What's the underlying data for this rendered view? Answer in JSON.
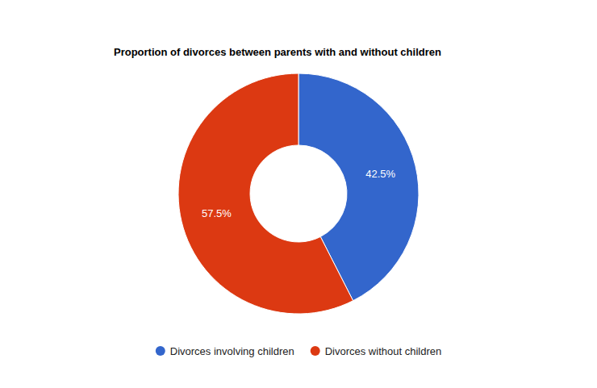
{
  "chart_data": {
    "type": "donut",
    "title": "Proportion of divorces between parents with and without children",
    "categories": [
      "Divorces involving children",
      "Divorces without children"
    ],
    "values": [
      42.5,
      57.5
    ],
    "value_labels": [
      "42.5%",
      "57.5%"
    ],
    "colors": [
      "#3366cc",
      "#dc3912"
    ],
    "data_labels": true,
    "legend": "bottom"
  }
}
